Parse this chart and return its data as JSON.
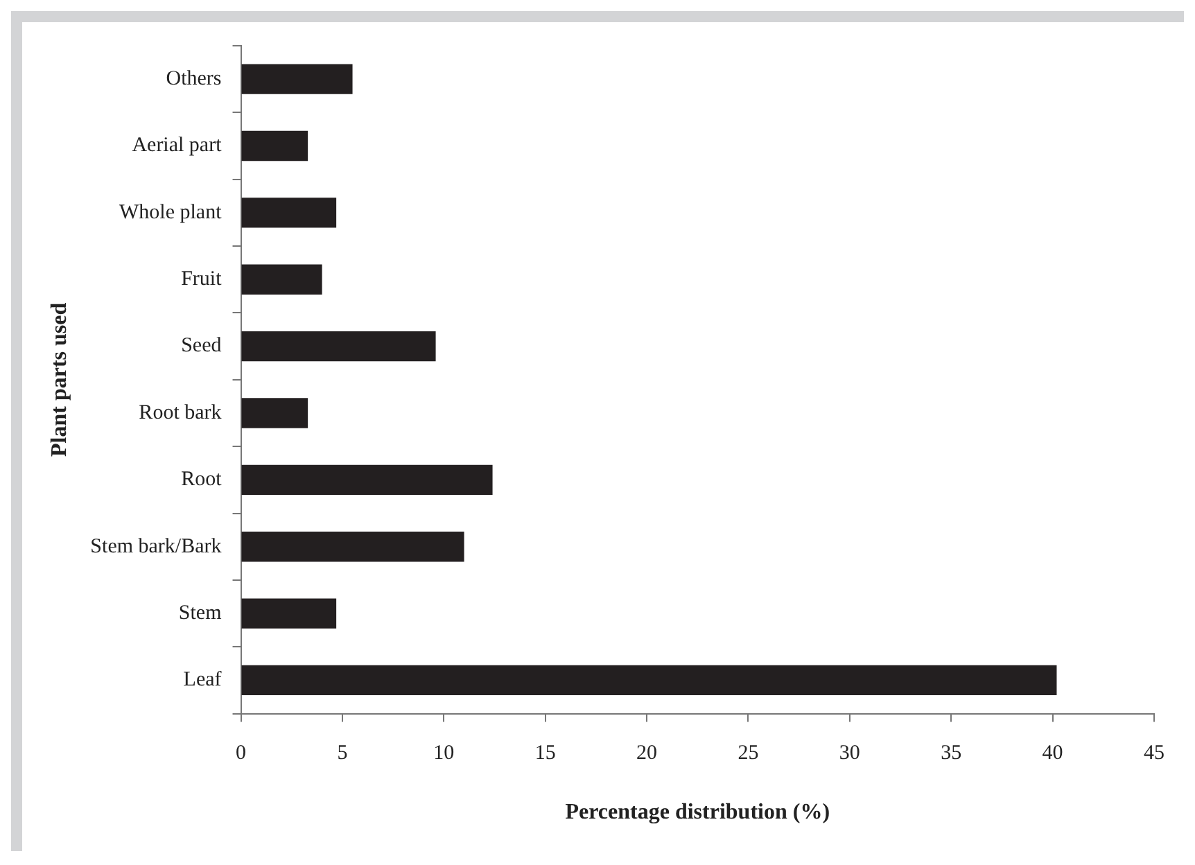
{
  "chart_data": {
    "type": "bar",
    "orientation": "horizontal",
    "xlabel": "Percentage distribution (%)",
    "ylabel": "Plant parts used",
    "categories": [
      "Others",
      "Aerial part",
      "Whole plant",
      "Fruit",
      "Seed",
      "Root bark",
      "Root",
      "Stem bark/Bark",
      "Stem",
      "Leaf"
    ],
    "values": [
      5.5,
      3.3,
      4.7,
      4.0,
      9.6,
      3.3,
      12.4,
      11.0,
      4.7,
      40.2
    ],
    "color": "#231f20",
    "xlim": [
      0,
      45
    ],
    "xticks": [
      0,
      5,
      10,
      15,
      20,
      25,
      30,
      35,
      40,
      45
    ],
    "grid": false,
    "legend": false
  }
}
